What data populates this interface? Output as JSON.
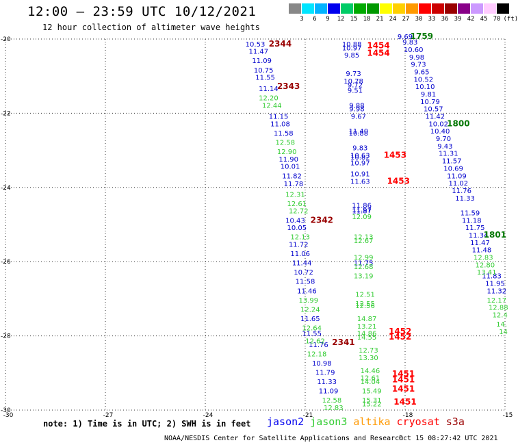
{
  "title": "12:00 — 23:59 UTC 10/12/2021",
  "subtitle": "12 hour collection of altimeter wave heights",
  "colorbar": {
    "unit_label": "(ft)",
    "labels": [
      "3",
      "6",
      "9",
      "12",
      "15",
      "18",
      "21",
      "24",
      "27",
      "30",
      "33",
      "36",
      "39",
      "42",
      "45",
      "70"
    ],
    "colors": [
      "#888888",
      "#00e5ff",
      "#00b3ff",
      "#0000ee",
      "#00cc66",
      "#00aa00",
      "#009900",
      "#ffff00",
      "#ffd000",
      "#ff9900",
      "#ff0000",
      "#cc0000",
      "#990000",
      "#880088",
      "#cc99ff",
      "#ffccff",
      "#000000"
    ]
  },
  "note": "note: 1) Time is in UTC; 2) SWH is in feet",
  "satellites": [
    {
      "name": "jason2",
      "color": "#0000ee"
    },
    {
      "name": "jason3",
      "color": "#33cc33"
    },
    {
      "name": "altika",
      "color": "#ff9900"
    },
    {
      "name": "cryosat",
      "color": "#ff0000"
    },
    {
      "name": "s3a",
      "color": "#990000"
    }
  ],
  "footer_left": "NOAA/NESDIS Center for Satellite Applications and Research",
  "footer_right": "Oct 15 08:27:42 UTC 2021",
  "chart_data": {
    "type": "scatter",
    "title": "12:00 — 23:59 UTC 10/12/2021",
    "xlim": [
      -30,
      -15
    ],
    "ylim": [
      -30,
      -20
    ],
    "x_ticks": [
      -30,
      -27,
      -24,
      -21,
      -18,
      -15
    ],
    "y_ticks": [
      -20,
      -22,
      -24,
      -26,
      -28,
      -30
    ],
    "grid": true,
    "series": [
      {
        "name": "jason2",
        "color": "#0000cc",
        "points": [
          {
            "x": -22.5,
            "y": -20.2,
            "label": "10.53"
          },
          {
            "x": -22.4,
            "y": -20.4,
            "label": "11.47"
          },
          {
            "x": -22.3,
            "y": -20.65,
            "label": "11.09"
          },
          {
            "x": -22.25,
            "y": -20.9,
            "label": "10.75"
          },
          {
            "x": -22.2,
            "y": -21.1,
            "label": "11.55"
          },
          {
            "x": -22.1,
            "y": -21.4,
            "label": "11.14"
          },
          {
            "x": -21.8,
            "y": -22.15,
            "label": "11.15"
          },
          {
            "x": -21.75,
            "y": -22.35,
            "label": "11.08"
          },
          {
            "x": -21.65,
            "y": -22.6,
            "label": "11.58"
          },
          {
            "x": -21.5,
            "y": -23.3,
            "label": "11.90"
          },
          {
            "x": -21.45,
            "y": -23.5,
            "label": "10.01"
          },
          {
            "x": -21.4,
            "y": -23.75,
            "label": "11.82"
          },
          {
            "x": -21.35,
            "y": -23.97,
            "label": "11.78"
          },
          {
            "x": -21.3,
            "y": -24.95,
            "label": "10.43"
          },
          {
            "x": -21.25,
            "y": -25.15,
            "label": "10.05"
          },
          {
            "x": -21.2,
            "y": -25.6,
            "label": "11.72"
          },
          {
            "x": -21.15,
            "y": -25.85,
            "label": "11.06"
          },
          {
            "x": -21.1,
            "y": -26.1,
            "label": "11.44"
          },
          {
            "x": -21.05,
            "y": -26.35,
            "label": "10.72"
          },
          {
            "x": -21.0,
            "y": -26.6,
            "label": "11.58"
          },
          {
            "x": -20.95,
            "y": -26.85,
            "label": "11.46"
          },
          {
            "x": -20.85,
            "y": -27.6,
            "label": "11.65"
          },
          {
            "x": -20.8,
            "y": -28.0,
            "label": "11.55"
          },
          {
            "x": -20.6,
            "y": -28.3,
            "label": "11.76"
          },
          {
            "x": -20.5,
            "y": -28.8,
            "label": "10.98"
          },
          {
            "x": -20.4,
            "y": -29.05,
            "label": "11.79"
          },
          {
            "x": -20.35,
            "y": -29.3,
            "label": "11.33"
          },
          {
            "x": -20.3,
            "y": -29.55,
            "label": "11.09"
          },
          {
            "x": -19.6,
            "y": -20.2,
            "label": "10.88"
          },
          {
            "x": -19.6,
            "y": -20.3,
            "label": "10.97"
          },
          {
            "x": -19.6,
            "y": -20.5,
            "label": "9.85"
          },
          {
            "x": -19.55,
            "y": -21.0,
            "label": "9.73"
          },
          {
            "x": -19.55,
            "y": -21.2,
            "label": "10.78"
          },
          {
            "x": -19.5,
            "y": -21.3,
            "label": "9.72"
          },
          {
            "x": -19.5,
            "y": -21.45,
            "label": "9.51"
          },
          {
            "x": -19.45,
            "y": -21.85,
            "label": "9.88"
          },
          {
            "x": -19.45,
            "y": -21.95,
            "label": "9.98"
          },
          {
            "x": -19.4,
            "y": -22.15,
            "label": "9.67"
          },
          {
            "x": -19.4,
            "y": -22.55,
            "label": "11.40"
          },
          {
            "x": -19.4,
            "y": -22.6,
            "label": "10.88"
          },
          {
            "x": -19.35,
            "y": -23.0,
            "label": "9.83"
          },
          {
            "x": -19.35,
            "y": -23.2,
            "label": "10.63"
          },
          {
            "x": -19.35,
            "y": -23.25,
            "label": "10.82"
          },
          {
            "x": -19.35,
            "y": -23.4,
            "label": "10.97"
          },
          {
            "x": -19.35,
            "y": -23.7,
            "label": "10.91"
          },
          {
            "x": -19.35,
            "y": -23.9,
            "label": "11.63"
          },
          {
            "x": -19.3,
            "y": -24.55,
            "label": "11.86"
          },
          {
            "x": -19.3,
            "y": -24.65,
            "label": "11.67"
          },
          {
            "x": -19.3,
            "y": -24.7,
            "label": "11.87"
          },
          {
            "x": -19.25,
            "y": -26.1,
            "label": "11.75"
          },
          {
            "x": -18.0,
            "y": -20.0,
            "label": "9.69"
          },
          {
            "x": -17.85,
            "y": -20.15,
            "label": "9.83"
          },
          {
            "x": -17.75,
            "y": -20.35,
            "label": "10.60"
          },
          {
            "x": -17.65,
            "y": -20.55,
            "label": "9.98"
          },
          {
            "x": -17.6,
            "y": -20.75,
            "label": "9.73"
          },
          {
            "x": -17.5,
            "y": -20.95,
            "label": "9.65"
          },
          {
            "x": -17.45,
            "y": -21.15,
            "label": "10.52"
          },
          {
            "x": -17.4,
            "y": -21.35,
            "label": "10.10"
          },
          {
            "x": -17.3,
            "y": -21.55,
            "label": "9.81"
          },
          {
            "x": -17.25,
            "y": -21.75,
            "label": "10.79"
          },
          {
            "x": -17.15,
            "y": -21.95,
            "label": "10.57"
          },
          {
            "x": -17.1,
            "y": -22.15,
            "label": "11.42"
          },
          {
            "x": -17.0,
            "y": -22.35,
            "label": "10.02"
          },
          {
            "x": -16.95,
            "y": -22.55,
            "label": "10.40"
          },
          {
            "x": -16.85,
            "y": -22.75,
            "label": "9.70"
          },
          {
            "x": -16.8,
            "y": -22.95,
            "label": "9.43"
          },
          {
            "x": -16.7,
            "y": -23.15,
            "label": "11.31"
          },
          {
            "x": -16.6,
            "y": -23.35,
            "label": "11.57"
          },
          {
            "x": -16.55,
            "y": -23.55,
            "label": "10.69"
          },
          {
            "x": -16.45,
            "y": -23.75,
            "label": "11.09"
          },
          {
            "x": -16.4,
            "y": -23.95,
            "label": "11.02"
          },
          {
            "x": -16.3,
            "y": -24.15,
            "label": "11.76"
          },
          {
            "x": -16.2,
            "y": -24.35,
            "label": "11.33"
          },
          {
            "x": -16.05,
            "y": -24.75,
            "label": "11.59"
          },
          {
            "x": -16.0,
            "y": -24.95,
            "label": "11.18"
          },
          {
            "x": -15.9,
            "y": -25.15,
            "label": "11.75"
          },
          {
            "x": -15.8,
            "y": -25.35,
            "label": "11.34"
          },
          {
            "x": -15.75,
            "y": -25.55,
            "label": "11.47"
          },
          {
            "x": -15.7,
            "y": -25.75,
            "label": "11.48"
          },
          {
            "x": -15.4,
            "y": -26.45,
            "label": "11.83"
          },
          {
            "x": -15.3,
            "y": -26.65,
            "label": "11.95"
          },
          {
            "x": -15.25,
            "y": -26.85,
            "label": "11.32"
          }
        ]
      },
      {
        "name": "jason3",
        "color": "#33cc33",
        "points": [
          {
            "x": -22.1,
            "y": -21.65,
            "label": "12.20"
          },
          {
            "x": -22.0,
            "y": -21.85,
            "label": "12.44"
          },
          {
            "x": -21.6,
            "y": -22.85,
            "label": "12.58"
          },
          {
            "x": -21.55,
            "y": -23.1,
            "label": "12.90"
          },
          {
            "x": -21.3,
            "y": -24.25,
            "label": "12.31"
          },
          {
            "x": -21.25,
            "y": -24.5,
            "label": "12.61"
          },
          {
            "x": -21.2,
            "y": -24.7,
            "label": "12.72"
          },
          {
            "x": -21.15,
            "y": -25.4,
            "label": "12.13"
          },
          {
            "x": -20.9,
            "y": -27.1,
            "label": "13.99"
          },
          {
            "x": -20.85,
            "y": -27.35,
            "label": "12.24"
          },
          {
            "x": -20.8,
            "y": -27.85,
            "label": "12.64"
          },
          {
            "x": -20.7,
            "y": -28.2,
            "label": "12.62"
          },
          {
            "x": -20.65,
            "y": -28.55,
            "label": "12.18"
          },
          {
            "x": -20.2,
            "y": -29.8,
            "label": "12.58"
          },
          {
            "x": -20.15,
            "y": -30.0,
            "label": "12.83"
          },
          {
            "x": -19.3,
            "y": -24.85,
            "label": "12.09"
          },
          {
            "x": -19.25,
            "y": -25.4,
            "label": "12.13"
          },
          {
            "x": -19.25,
            "y": -25.5,
            "label": "12.67"
          },
          {
            "x": -19.25,
            "y": -25.95,
            "label": "12.99"
          },
          {
            "x": -19.25,
            "y": -26.2,
            "label": "12.68"
          },
          {
            "x": -19.25,
            "y": -26.45,
            "label": "13.19"
          },
          {
            "x": -19.2,
            "y": -26.95,
            "label": "12.51"
          },
          {
            "x": -19.2,
            "y": -27.2,
            "label": "12.55"
          },
          {
            "x": -19.2,
            "y": -27.25,
            "label": "12.56"
          },
          {
            "x": -19.15,
            "y": -27.6,
            "label": "14.87"
          },
          {
            "x": -19.15,
            "y": -27.8,
            "label": "13.21"
          },
          {
            "x": -19.15,
            "y": -28.0,
            "label": "14.86"
          },
          {
            "x": -19.15,
            "y": -28.1,
            "label": "14.55"
          },
          {
            "x": -19.1,
            "y": -28.45,
            "label": "12.73"
          },
          {
            "x": -19.1,
            "y": -28.65,
            "label": "13.30"
          },
          {
            "x": -19.05,
            "y": -29.0,
            "label": "14.46"
          },
          {
            "x": -19.05,
            "y": -29.2,
            "label": "12.61"
          },
          {
            "x": -19.05,
            "y": -29.3,
            "label": "14.04"
          },
          {
            "x": -19.0,
            "y": -29.55,
            "label": "15.49"
          },
          {
            "x": -19.0,
            "y": -29.8,
            "label": "15.31"
          },
          {
            "x": -19.0,
            "y": -29.9,
            "label": "15.22"
          },
          {
            "x": -15.65,
            "y": -25.95,
            "label": "12.83"
          },
          {
            "x": -15.6,
            "y": -26.15,
            "label": "12.80"
          },
          {
            "x": -15.55,
            "y": -26.35,
            "label": "13.41"
          },
          {
            "x": -15.25,
            "y": -27.1,
            "label": "12.17"
          },
          {
            "x": -15.2,
            "y": -27.3,
            "label": "12.88"
          },
          {
            "x": -15.15,
            "y": -27.5,
            "label": "12.4"
          },
          {
            "x": -15.1,
            "y": -27.75,
            "label": "14."
          },
          {
            "x": -15.05,
            "y": -27.95,
            "label": "14"
          }
        ]
      },
      {
        "name": "cryosat",
        "color": "#ff0000",
        "points": [
          {
            "x": -18.8,
            "y": -20.25,
            "label": "1454"
          },
          {
            "x": -18.8,
            "y": -20.45,
            "label": "1454"
          },
          {
            "x": -18.3,
            "y": -23.2,
            "label": "1453"
          },
          {
            "x": -18.2,
            "y": -23.9,
            "label": "1453"
          },
          {
            "x": -18.15,
            "y": -27.95,
            "label": "1452"
          },
          {
            "x": -18.15,
            "y": -28.1,
            "label": "1452"
          },
          {
            "x": -18.05,
            "y": -29.1,
            "label": "1451"
          },
          {
            "x": -18.05,
            "y": -29.25,
            "label": "1451"
          },
          {
            "x": -18.05,
            "y": -29.5,
            "label": "1451"
          },
          {
            "x": -18.0,
            "y": -29.85,
            "label": "1451"
          }
        ]
      },
      {
        "name": "s3a",
        "color": "#990000",
        "points": [
          {
            "x": -21.75,
            "y": -20.2,
            "label": "2344"
          },
          {
            "x": -21.5,
            "y": -21.35,
            "label": "2343"
          },
          {
            "x": -20.5,
            "y": -24.95,
            "label": "2342"
          },
          {
            "x": -19.85,
            "y": -28.25,
            "label": "2341"
          }
        ]
      },
      {
        "name": "",
        "color": "#007700",
        "points": [
          {
            "x": -17.5,
            "y": -20.0,
            "label": "1759"
          },
          {
            "x": -16.4,
            "y": -22.35,
            "label": "1800"
          },
          {
            "x": -15.3,
            "y": -25.35,
            "label": "1801"
          }
        ]
      }
    ]
  }
}
